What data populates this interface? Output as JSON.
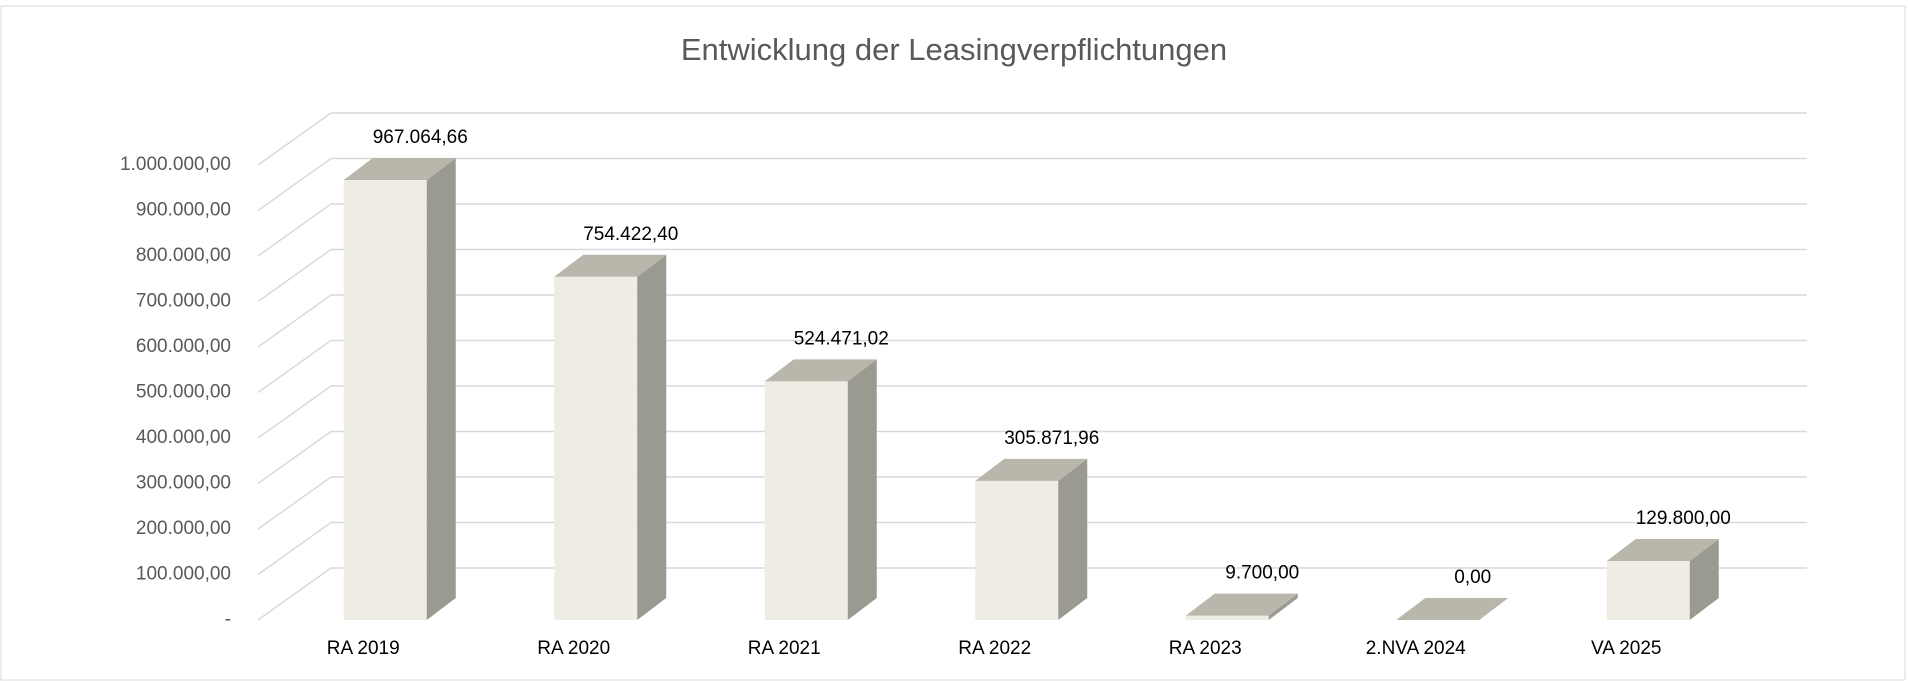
{
  "chart_data": {
    "type": "bar3d",
    "title": "Entwicklung der Leasingverpflichtungen",
    "categories": [
      "RA 2019",
      "RA 2020",
      "RA 2021",
      "RA 2022",
      "RA 2023",
      "2.NVA 2024",
      "VA 2025"
    ],
    "values": [
      967064.66,
      754422.4,
      524471.02,
      305871.96,
      9700.0,
      0.0,
      129800.0
    ],
    "value_labels": [
      "967.064,66",
      "754.422,40",
      "524.471,02",
      "305.871,96",
      "9.700,00",
      "0,00",
      "129.800,00"
    ],
    "color": "#efede3",
    "ylim": [
      0,
      1000000
    ],
    "yticks": [
      {
        "value": 0,
        "label": "-"
      },
      {
        "value": 100000,
        "label": "100.000,00"
      },
      {
        "value": 200000,
        "label": "200.000,00"
      },
      {
        "value": 300000,
        "label": "300.000,00"
      },
      {
        "value": 400000,
        "label": "400.000,00"
      },
      {
        "value": 500000,
        "label": "500.000,00"
      },
      {
        "value": 600000,
        "label": "600.000,00"
      },
      {
        "value": 700000,
        "label": "700.000,00"
      },
      {
        "value": 800000,
        "label": "800.000,00"
      },
      {
        "value": 900000,
        "label": "900.000,00"
      },
      {
        "value": 1000000,
        "label": "1.000.000,00"
      }
    ],
    "grid": true
  }
}
